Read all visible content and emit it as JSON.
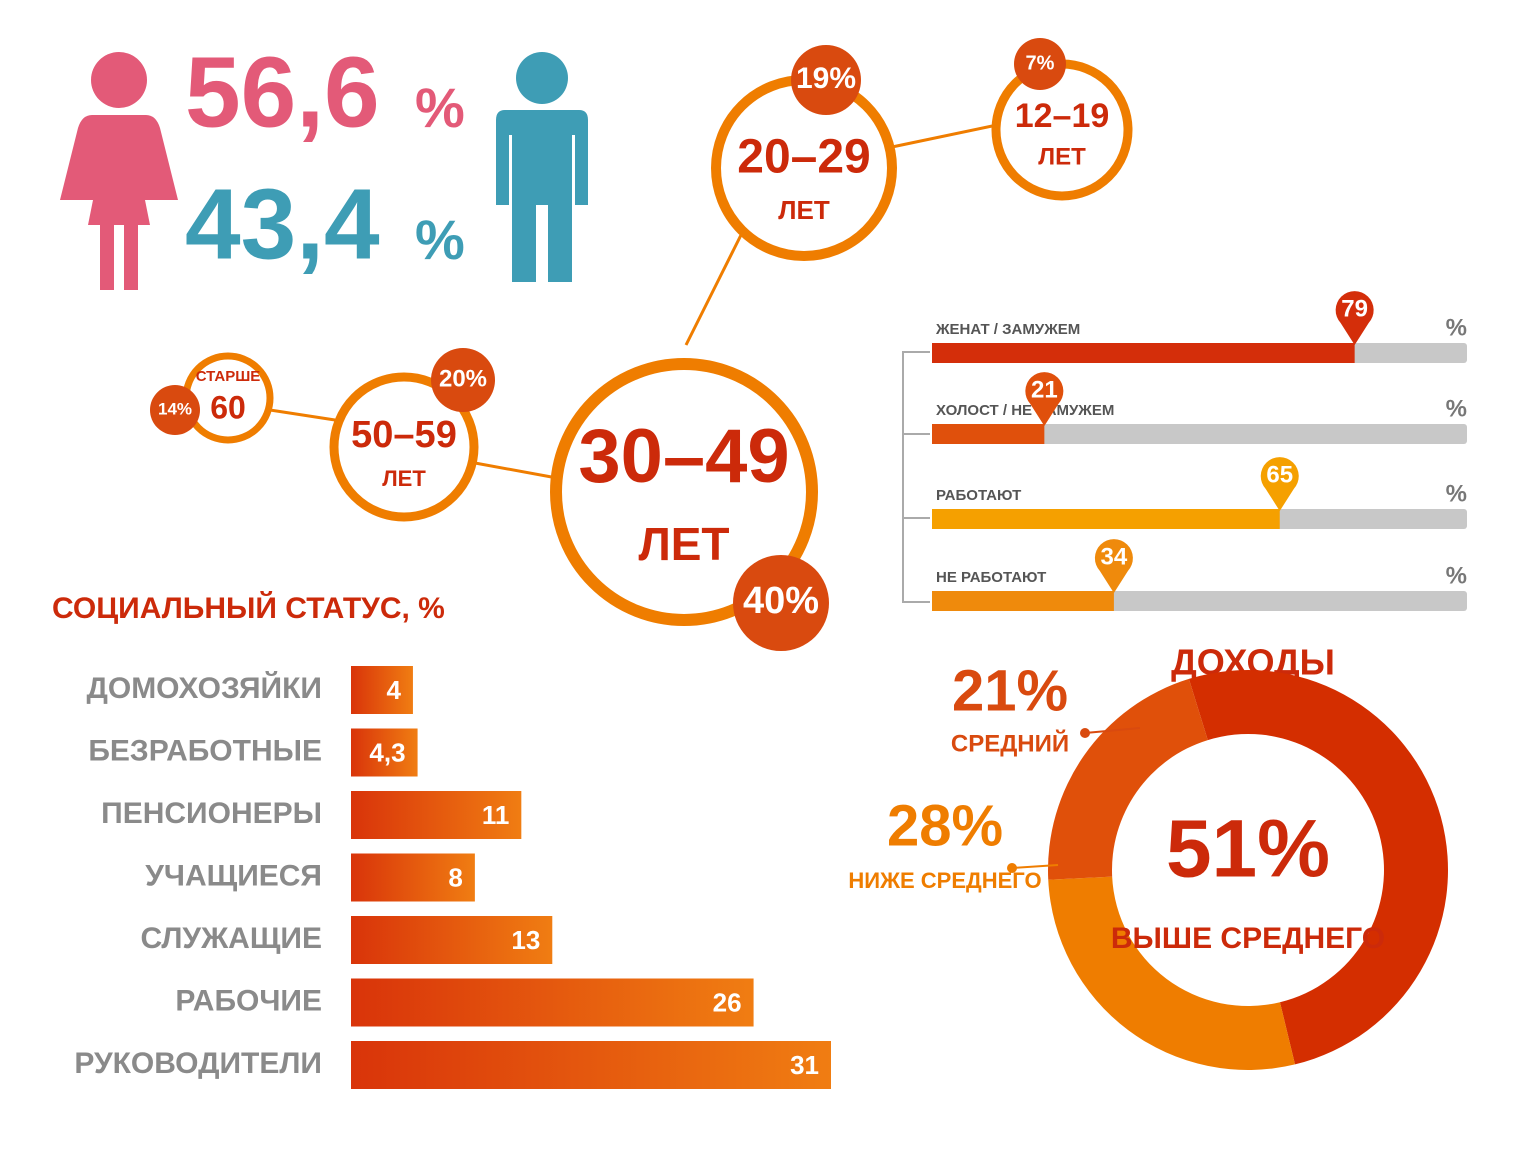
{
  "gender": {
    "female": "56,6",
    "male": "43,4",
    "percent": "%"
  },
  "age_groups": [
    {
      "label": "30–49",
      "unit": "ЛЕТ",
      "share": "40%"
    },
    {
      "label": "20–29",
      "unit": "ЛЕТ",
      "share": "19%"
    },
    {
      "label": "12–19",
      "unit": "ЛЕТ",
      "share": "7%"
    },
    {
      "label": "50–59",
      "unit": "ЛЕТ",
      "share": "20%"
    },
    {
      "prefix": "СТАРШЕ",
      "label": "60",
      "share": "14%"
    }
  ],
  "chart_data": [
    {
      "type": "hbar",
      "title": "СОЦИАЛЬНЫЙ СТАТУС, %",
      "categories": [
        "ДОМОХОЗЯЙКИ",
        "БЕЗРАБОТНЫЕ",
        "ПЕНСИОНЕРЫ",
        "УЧАЩИЕСЯ",
        "СЛУЖАЩИЕ",
        "РАБОЧИЕ",
        "РУКОВОДИТЕЛИ"
      ],
      "values": [
        4,
        4.3,
        11,
        8,
        13,
        26,
        31
      ],
      "value_labels": [
        "4",
        "4,3",
        "11",
        "8",
        "13",
        "26",
        "31"
      ],
      "xlim": [
        0,
        31
      ]
    },
    {
      "type": "progress",
      "unit": "%",
      "categories": [
        "ЖЕНАТ / ЗАМУЖЕМ",
        "ХОЛОСТ / НЕ ЗАМУЖЕМ",
        "РАБОТАЮТ",
        "НЕ РАБОТАЮТ"
      ],
      "values": [
        79,
        21,
        65,
        34
      ],
      "colors": [
        "#d42e0a",
        "#e0500c",
        "#f5a000",
        "#ef8a0c"
      ],
      "xlim": [
        0,
        100
      ]
    },
    {
      "type": "donut",
      "title": "ДОХОДЫ",
      "categories": [
        "ВЫШЕ СРЕДНЕГО",
        "НИЖЕ СРЕДНЕГО",
        "СРЕДНИЙ"
      ],
      "values": [
        51,
        28,
        21
      ],
      "value_labels": [
        "51%",
        "28%",
        "21%"
      ],
      "colors": [
        "#d42e00",
        "#ef7d00",
        "#e0500a"
      ]
    }
  ]
}
